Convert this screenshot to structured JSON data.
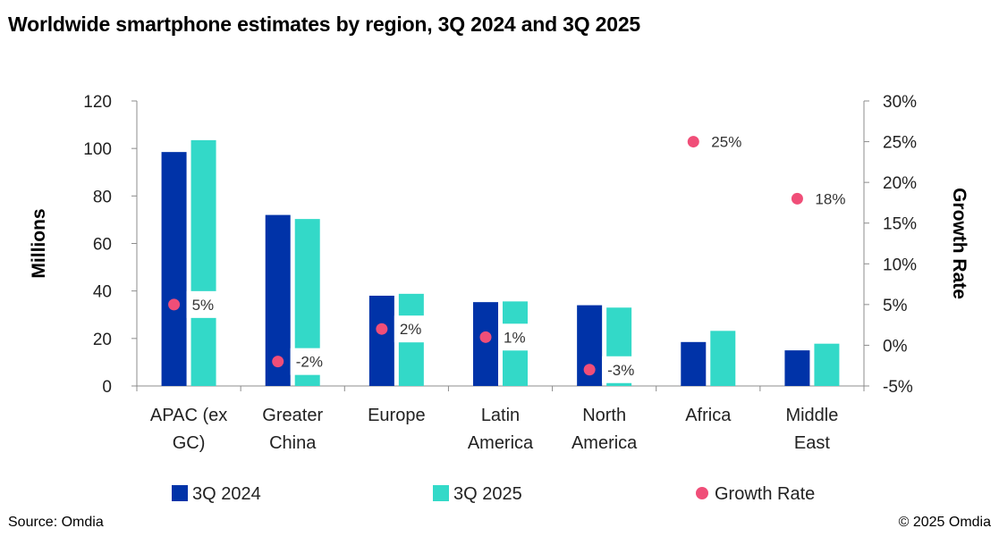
{
  "header": {
    "title": "Worldwide smartphone estimates by region, 3Q 2024 and 3Q 2025"
  },
  "footer": {
    "source": "Source: Omdia",
    "copyright": "© 2025 Omdia"
  },
  "colors": {
    "series_2024": "#0033a8",
    "series_2025": "#33d9c8",
    "growth": "#f04e78",
    "axis": "#8c8c8c"
  },
  "chart_data": {
    "type": "bar",
    "categories": [
      [
        "APAC (ex",
        "GC)"
      ],
      [
        "Greater",
        "China"
      ],
      [
        "Europe"
      ],
      [
        "Latin",
        "America"
      ],
      [
        "North",
        "America"
      ],
      [
        "Africa"
      ],
      [
        "Middle",
        "East"
      ]
    ],
    "series": [
      {
        "name": "3Q 2024",
        "values": [
          98.5,
          72,
          38,
          35.3,
          34,
          18.5,
          15
        ]
      },
      {
        "name": "3Q 2025",
        "values": [
          103.5,
          70.3,
          38.8,
          35.6,
          33,
          23.2,
          17.8
        ]
      }
    ],
    "growth": {
      "name": "Growth Rate",
      "values": [
        5,
        -2,
        2,
        1,
        -3,
        25,
        18
      ],
      "labels": [
        "5%",
        "-2%",
        "2%",
        "1%",
        "-3%",
        "25%",
        "18%"
      ]
    },
    "ylabel": "Millions",
    "y2label": "Growth Rate",
    "ylim": [
      0,
      120
    ],
    "y2lim": [
      -5,
      30
    ],
    "yticks": [
      "0",
      "20",
      "40",
      "60",
      "80",
      "100",
      "120"
    ],
    "y2ticks": [
      "-5%",
      "0%",
      "5%",
      "10%",
      "15%",
      "20%",
      "25%",
      "30%"
    ],
    "legend_position": "bottom"
  }
}
